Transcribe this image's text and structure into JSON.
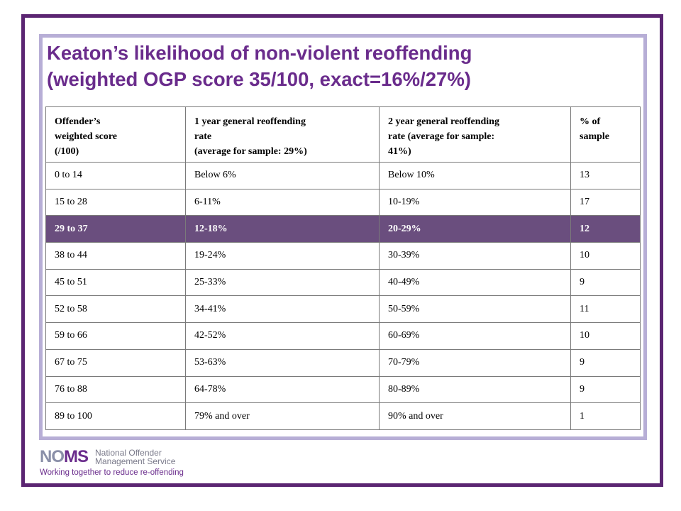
{
  "slide": {
    "title_line1": "Keaton’s likelihood of non-violent reoffending",
    "title_line2": "(weighted OGP score 35/100, exact=16%/27%)"
  },
  "table": {
    "headers": [
      [
        "Offender’s",
        "weighted score",
        "(/100)"
      ],
      [
        "1 year general reoffending",
        "rate",
        "(average for sample: 29%)"
      ],
      [
        "2 year general reoffending",
        "rate (average for sample:",
        "41%)"
      ],
      [
        "% of",
        "sample"
      ]
    ],
    "rows": [
      [
        "0 to 14",
        "Below 6%",
        "Below 10%",
        "13"
      ],
      [
        "15 to 28",
        "6-11%",
        "10-19%",
        "17"
      ],
      [
        "29 to 37",
        "12-18%",
        "20-29%",
        "12"
      ],
      [
        "38 to 44",
        "19-24%",
        "30-39%",
        "10"
      ],
      [
        "45 to 51",
        "25-33%",
        "40-49%",
        "9"
      ],
      [
        "52 to 58",
        "34-41%",
        "50-59%",
        "11"
      ],
      [
        "59 to 66",
        "42-52%",
        "60-69%",
        "10"
      ],
      [
        "67 to 75",
        "53-63%",
        "70-79%",
        "9"
      ],
      [
        "76 to 88",
        "64-78%",
        "80-89%",
        "9"
      ],
      [
        "89 to 100",
        "79% and over",
        "90% and over",
        "1"
      ]
    ],
    "highlight_row_index": 2,
    "highlight_color": "#6a4e7e"
  },
  "logo": {
    "mark_no": "NO",
    "mark_ms": "MS",
    "name_line1": "National Offender",
    "name_line2": "Management Service",
    "tagline": "Working together to reduce re-offending"
  },
  "colors": {
    "frame_outer": "#5b2572",
    "frame_inner": "#b7aed6",
    "title": "#6a2c8c"
  }
}
